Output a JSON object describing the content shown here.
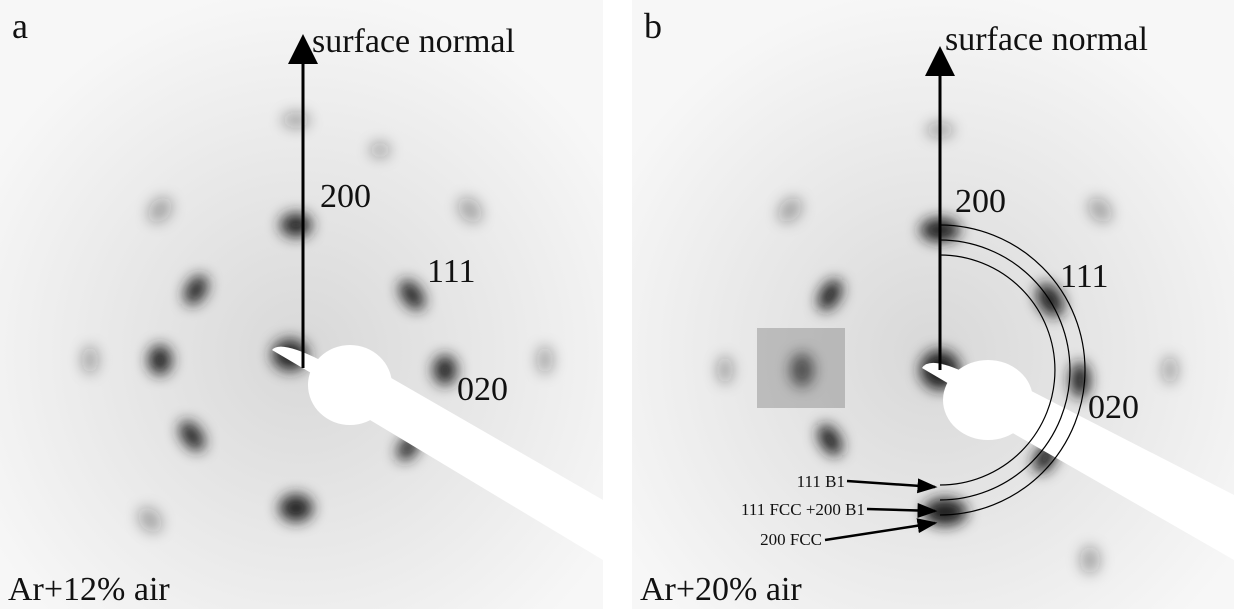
{
  "panels": [
    {
      "label": "a",
      "arrow_label": "surface normal",
      "reflections": [
        "200",
        "111",
        "020"
      ],
      "condition": "Ar+12% air"
    },
    {
      "label": "b",
      "arrow_label": "surface normal",
      "reflections": [
        "200",
        "111",
        "020"
      ],
      "condition": "Ar+20% air",
      "ring_labels": [
        "111 B1",
        "111 FCC +200 B1",
        "200 FCC"
      ]
    }
  ]
}
